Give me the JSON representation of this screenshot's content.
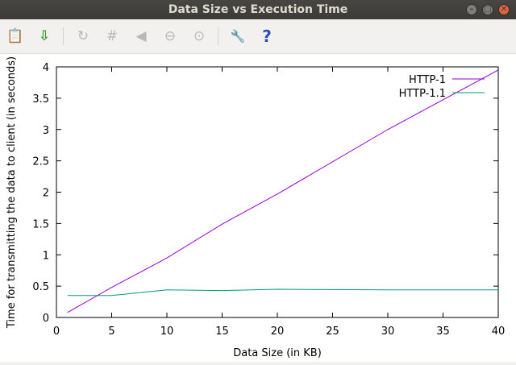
{
  "window": {
    "title": "Data Size vs Execution Time"
  },
  "toolbar": {
    "buttons": [
      {
        "name": "copy-to-clipboard-button",
        "icon": "clipboard-icon",
        "glyph": "📋",
        "enabled": true
      },
      {
        "name": "export-button",
        "icon": "save-export-icon",
        "glyph": "⇩",
        "enabled": true
      },
      {
        "name": "replot-button",
        "icon": "refresh-icon",
        "glyph": "↻",
        "enabled": false
      },
      {
        "name": "grid-button",
        "icon": "grid-icon",
        "glyph": "#",
        "enabled": false
      },
      {
        "name": "previous-zoom-button",
        "icon": "zoom-back-icon",
        "glyph": "◀",
        "enabled": false
      },
      {
        "name": "unzoom-button",
        "icon": "zoom-out-icon",
        "glyph": "⊖",
        "enabled": false
      },
      {
        "name": "zoom-button",
        "icon": "zoom-icon",
        "glyph": "⊙",
        "enabled": false
      },
      {
        "name": "settings-button",
        "icon": "wrench-icon",
        "glyph": "🔧",
        "enabled": true
      },
      {
        "name": "help-button",
        "icon": "help-icon",
        "glyph": "?",
        "enabled": true
      }
    ]
  },
  "chart_data": {
    "type": "line",
    "title": "",
    "xlabel": "Data Size (in KB)",
    "ylabel": "Time for transmitting the data to client (in seconds)",
    "xlim": [
      0,
      40
    ],
    "ylim": [
      0,
      4
    ],
    "xticks": [
      "0",
      "5",
      "10",
      "15",
      "20",
      "25",
      "30",
      "35",
      "40"
    ],
    "yticks": [
      "0",
      "0.5",
      "1",
      "1.5",
      "2",
      "2.5",
      "3",
      "3.5",
      "4"
    ],
    "grid": false,
    "legend_position": "top-right",
    "series": [
      {
        "name": "HTTP-1",
        "color": "#9400d3",
        "x": [
          1,
          5,
          10,
          15,
          20,
          30,
          40
        ],
        "y": [
          0.08,
          0.48,
          0.95,
          1.49,
          1.97,
          3.0,
          3.95
        ]
      },
      {
        "name": "HTTP-1.1",
        "color": "#009e73",
        "x": [
          1,
          5,
          10,
          15,
          20,
          30,
          40
        ],
        "y": [
          0.35,
          0.35,
          0.44,
          0.43,
          0.45,
          0.44,
          0.44
        ]
      }
    ]
  }
}
